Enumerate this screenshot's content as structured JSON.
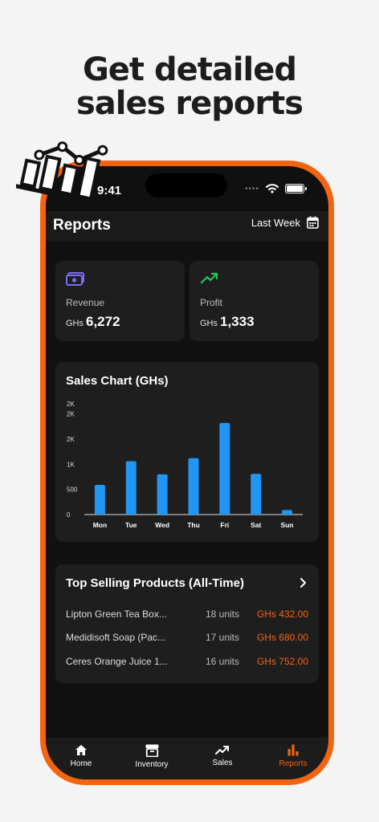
{
  "headline": {
    "line1": "Get detailed",
    "line2": "sales reports"
  },
  "status_bar": {
    "time": "9:41"
  },
  "header": {
    "title": "Reports",
    "period": "Last Week",
    "calendar_icon": "calendar-icon"
  },
  "stats": {
    "revenue": {
      "label": "Revenue",
      "currency": "GHs",
      "value": "6,272",
      "icon": "cash-icon",
      "color": "#7b6cf6"
    },
    "profit": {
      "label": "Profit",
      "currency": "GHs",
      "value": "1,333",
      "icon": "trending-up-icon",
      "color": "#22c55e"
    }
  },
  "sales_chart": {
    "title": "Sales Chart (GHs)"
  },
  "chart_data": {
    "type": "bar",
    "title": "Sales Chart (GHs)",
    "categories": [
      "Mon",
      "Tue",
      "Wed",
      "Thu",
      "Fri",
      "Sat",
      "Sun"
    ],
    "values": [
      590,
      1060,
      800,
      1120,
      1820,
      810,
      90
    ],
    "y_ticks": [
      "0",
      "500",
      "1K",
      "2K",
      "2K",
      "2K"
    ],
    "y_tick_values": [
      0,
      500,
      1000,
      1500,
      2000,
      2200
    ],
    "ylim": [
      0,
      2200
    ],
    "bar_color": "#2196f3",
    "grid": false,
    "xlabel": "",
    "ylabel": ""
  },
  "top_products": {
    "title": "Top Selling Products (All-Time)",
    "items": [
      {
        "name": "Lipton Green Tea Box...",
        "units": "18 units",
        "price": "GHs 432.00"
      },
      {
        "name": "Medidisoft Soap (Pac...",
        "units": "17 units",
        "price": "GHs 680.00"
      },
      {
        "name": "Ceres Orange Juice 1...",
        "units": "16 units",
        "price": "GHs 752.00"
      }
    ]
  },
  "nav": {
    "items": [
      {
        "label": "Home",
        "icon": "home-icon"
      },
      {
        "label": "Inventory",
        "icon": "archive-icon"
      },
      {
        "label": "Sales",
        "icon": "trending-up-icon"
      },
      {
        "label": "Reports",
        "icon": "bar-chart-icon"
      }
    ],
    "active": "Reports",
    "active_color": "#f26411"
  }
}
